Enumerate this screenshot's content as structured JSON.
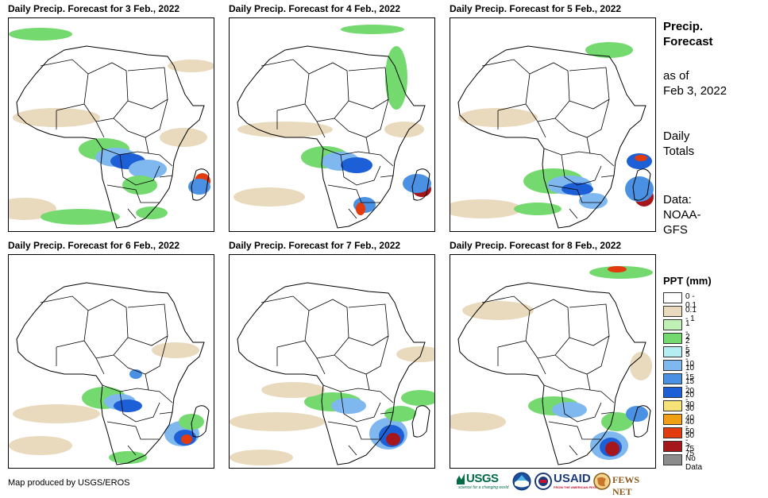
{
  "panels": [
    {
      "title": "Daily Precip. Forecast for 3 Feb., 2022"
    },
    {
      "title": "Daily Precip. Forecast for 4 Feb., 2022"
    },
    {
      "title": "Daily Precip. Forecast for 5 Feb., 2022"
    },
    {
      "title": "Daily Precip. Forecast for 6 Feb., 2022"
    },
    {
      "title": "Daily Precip. Forecast for 7 Feb., 2022"
    },
    {
      "title": "Daily Precip. Forecast for 8 Feb., 2022"
    }
  ],
  "sidebar": {
    "title_line1": "Precip.",
    "title_line2": "Forecast",
    "asof_line1": "as of",
    "asof_line2": "Feb 3, 2022",
    "totals_line1": "Daily",
    "totals_line2": "Totals",
    "data_line1": "Data:",
    "data_line2": "NOAA-",
    "data_line3": "GFS"
  },
  "legend": {
    "title": "PPT (mm)",
    "items": [
      {
        "label": "0 - 0.1",
        "color": "#ffffff"
      },
      {
        "label": "0.1 - 1",
        "color": "#e9d9bd"
      },
      {
        "label": "1 - 2",
        "color": "#bff0b5"
      },
      {
        "label": "2 - 5",
        "color": "#74d96f"
      },
      {
        "label": "5 - 10",
        "color": "#b5eef2"
      },
      {
        "label": "10 - 15",
        "color": "#7fb8ef"
      },
      {
        "label": "15 - 20",
        "color": "#4a90e3"
      },
      {
        "label": "20 - 30",
        "color": "#1d5fd6"
      },
      {
        "label": "30 - 40",
        "color": "#f7e27a"
      },
      {
        "label": "40 - 50",
        "color": "#f2a013"
      },
      {
        "label": "50 - 75",
        "color": "#e23b0e"
      },
      {
        "label": "> 75",
        "color": "#a5171b"
      },
      {
        "label": "No Data",
        "color": "#8c8c8c"
      }
    ]
  },
  "credit": "Map produced by USGS/EROS",
  "logos": {
    "usgs": "USGS",
    "usgs_tagline": "science for a changing world",
    "noaa": "NOAA",
    "usaid": "USAID",
    "usaid_tagline": "FROM THE AMERICAN PEOPLE",
    "fewsnet": "FEWS NET"
  }
}
